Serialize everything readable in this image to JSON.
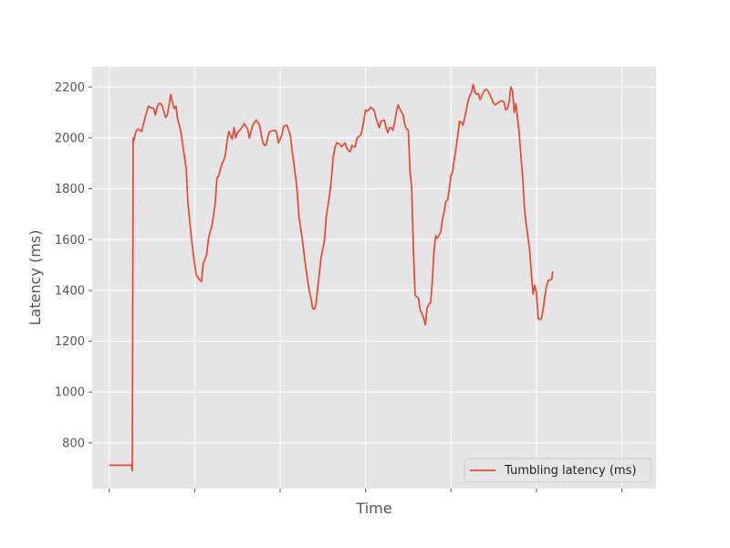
{
  "chart_data": {
    "type": "line",
    "xlabel": "Time",
    "ylabel": "Latency (ms)",
    "ylim": [
      620,
      2280
    ],
    "xlim": [
      -10,
      320
    ],
    "y_ticks": [
      800,
      1000,
      1200,
      1400,
      1600,
      1800,
      2000,
      2200
    ],
    "x_ticks": [
      0,
      50,
      100,
      150,
      200,
      250,
      300
    ],
    "x_tick_labels_shown": false,
    "grid": true,
    "legend_position": "lower-right",
    "series": [
      {
        "name": "Tumbling latency (ms)",
        "color": "#E24A33",
        "points": [
          [
            0,
            712
          ],
          [
            13,
            712
          ],
          [
            13.5,
            690
          ],
          [
            14,
            2000
          ],
          [
            14.5,
            1990
          ],
          [
            15,
            2010
          ],
          [
            16,
            2030
          ],
          [
            17,
            2035
          ],
          [
            19,
            2025
          ],
          [
            21,
            2080
          ],
          [
            23,
            2125
          ],
          [
            24,
            2120
          ],
          [
            26,
            2115
          ],
          [
            27,
            2090
          ],
          [
            28,
            2120
          ],
          [
            29,
            2135
          ],
          [
            30,
            2135
          ],
          [
            31,
            2125
          ],
          [
            33,
            2080
          ],
          [
            34,
            2090
          ],
          [
            36,
            2170
          ],
          [
            37,
            2140
          ],
          [
            38,
            2115
          ],
          [
            39,
            2125
          ],
          [
            40,
            2075
          ],
          [
            41,
            2050
          ],
          [
            42,
            2020
          ],
          [
            45,
            1880
          ],
          [
            46,
            1750
          ],
          [
            48,
            1610
          ],
          [
            50,
            1500
          ],
          [
            51,
            1460
          ],
          [
            53,
            1440
          ],
          [
            54,
            1435
          ],
          [
            55,
            1505
          ],
          [
            57,
            1540
          ],
          [
            58,
            1600
          ],
          [
            59,
            1630
          ],
          [
            60,
            1650
          ],
          [
            62,
            1740
          ],
          [
            63,
            1840
          ],
          [
            64,
            1850
          ],
          [
            66,
            1900
          ],
          [
            67,
            1910
          ],
          [
            68,
            1935
          ],
          [
            69,
            1990
          ],
          [
            70,
            2025
          ],
          [
            71,
            2010
          ],
          [
            72,
            1995
          ],
          [
            73,
            2040
          ],
          [
            74,
            2000
          ],
          [
            75,
            2020
          ],
          [
            77,
            2035
          ],
          [
            79,
            2055
          ],
          [
            80,
            2045
          ],
          [
            81,
            2035
          ],
          [
            82,
            2000
          ],
          [
            84,
            2050
          ],
          [
            85,
            2060
          ],
          [
            86,
            2070
          ],
          [
            88,
            2050
          ],
          [
            89,
            2010
          ],
          [
            90,
            1980
          ],
          [
            91,
            1970
          ],
          [
            92,
            1975
          ],
          [
            93,
            2010
          ],
          [
            94,
            2025
          ],
          [
            97,
            2030
          ],
          [
            98,
            2020
          ],
          [
            99,
            1980
          ],
          [
            100,
            1995
          ],
          [
            101,
            2010
          ],
          [
            102,
            2045
          ],
          [
            104,
            2050
          ],
          [
            106,
            2010
          ],
          [
            107,
            1950
          ],
          [
            109,
            1850
          ],
          [
            110,
            1790
          ],
          [
            111,
            1690
          ],
          [
            113,
            1600
          ],
          [
            115,
            1490
          ],
          [
            117,
            1400
          ],
          [
            118,
            1370
          ],
          [
            119,
            1330
          ],
          [
            120,
            1325
          ],
          [
            121,
            1345
          ],
          [
            122,
            1410
          ],
          [
            124,
            1530
          ],
          [
            126,
            1600
          ],
          [
            127,
            1690
          ],
          [
            129,
            1780
          ],
          [
            130,
            1840
          ],
          [
            131,
            1920
          ],
          [
            132,
            1960
          ],
          [
            133,
            1980
          ],
          [
            135,
            1975
          ],
          [
            136,
            1965
          ],
          [
            138,
            1980
          ],
          [
            139,
            1960
          ],
          [
            140,
            1950
          ],
          [
            141,
            1945
          ],
          [
            142,
            1970
          ],
          [
            143,
            1965
          ],
          [
            144,
            1965
          ],
          [
            145,
            2000
          ],
          [
            147,
            2010
          ],
          [
            148,
            2030
          ],
          [
            149,
            2070
          ],
          [
            150,
            2110
          ],
          [
            151,
            2105
          ],
          [
            152,
            2110
          ],
          [
            153,
            2120
          ],
          [
            155,
            2110
          ],
          [
            156,
            2080
          ],
          [
            158,
            2040
          ],
          [
            159,
            2065
          ],
          [
            161,
            2070
          ],
          [
            162,
            2040
          ],
          [
            163,
            2020
          ],
          [
            164,
            2040
          ],
          [
            165,
            2040
          ],
          [
            166,
            2030
          ],
          [
            167,
            2060
          ],
          [
            168,
            2100
          ],
          [
            169,
            2130
          ],
          [
            170,
            2115
          ],
          [
            172,
            2090
          ],
          [
            173,
            2050
          ],
          [
            174,
            2035
          ],
          [
            175,
            2030
          ],
          [
            176,
            1870
          ],
          [
            177,
            1800
          ],
          [
            178,
            1560
          ],
          [
            179,
            1380
          ],
          [
            180,
            1375
          ],
          [
            181,
            1370
          ],
          [
            182,
            1320
          ],
          [
            183,
            1310
          ],
          [
            184,
            1290
          ],
          [
            185,
            1265
          ],
          [
            186,
            1330
          ],
          [
            187,
            1345
          ],
          [
            188,
            1350
          ],
          [
            189,
            1430
          ],
          [
            190,
            1550
          ],
          [
            191,
            1615
          ],
          [
            192,
            1605
          ],
          [
            194,
            1630
          ],
          [
            195,
            1680
          ],
          [
            196,
            1710
          ],
          [
            197,
            1750
          ],
          [
            198,
            1755
          ],
          [
            199,
            1800
          ],
          [
            200,
            1850
          ],
          [
            201,
            1870
          ],
          [
            202,
            1920
          ],
          [
            203,
            1960
          ],
          [
            204,
            2010
          ],
          [
            205,
            2065
          ],
          [
            206,
            2060
          ],
          [
            207,
            2050
          ],
          [
            208,
            2080
          ],
          [
            209,
            2110
          ],
          [
            210,
            2145
          ],
          [
            211,
            2165
          ],
          [
            212,
            2180
          ],
          [
            213,
            2210
          ],
          [
            214,
            2180
          ],
          [
            215,
            2170
          ],
          [
            216,
            2175
          ],
          [
            217,
            2150
          ],
          [
            218,
            2165
          ],
          [
            219,
            2180
          ],
          [
            220,
            2190
          ],
          [
            221,
            2190
          ],
          [
            222,
            2180
          ],
          [
            223,
            2165
          ],
          [
            224,
            2150
          ],
          [
            225,
            2135
          ],
          [
            226,
            2130
          ],
          [
            228,
            2140
          ],
          [
            229,
            2145
          ],
          [
            230,
            2145
          ],
          [
            231,
            2140
          ],
          [
            232,
            2110
          ],
          [
            233,
            2115
          ],
          [
            234,
            2140
          ],
          [
            235,
            2200
          ],
          [
            236,
            2185
          ],
          [
            237,
            2100
          ],
          [
            238,
            2135
          ],
          [
            240,
            2010
          ],
          [
            241,
            1920
          ],
          [
            242,
            1840
          ],
          [
            243,
            1720
          ],
          [
            244,
            1660
          ],
          [
            245,
            1610
          ],
          [
            246,
            1560
          ],
          [
            247,
            1470
          ],
          [
            248,
            1385
          ],
          [
            249,
            1420
          ],
          [
            250,
            1390
          ],
          [
            251,
            1290
          ],
          [
            252,
            1285
          ],
          [
            253,
            1290
          ],
          [
            254,
            1330
          ],
          [
            255,
            1380
          ],
          [
            256,
            1420
          ],
          [
            257,
            1440
          ],
          [
            258,
            1440
          ],
          [
            259,
            1445
          ],
          [
            259.5,
            1475
          ]
        ]
      }
    ]
  }
}
